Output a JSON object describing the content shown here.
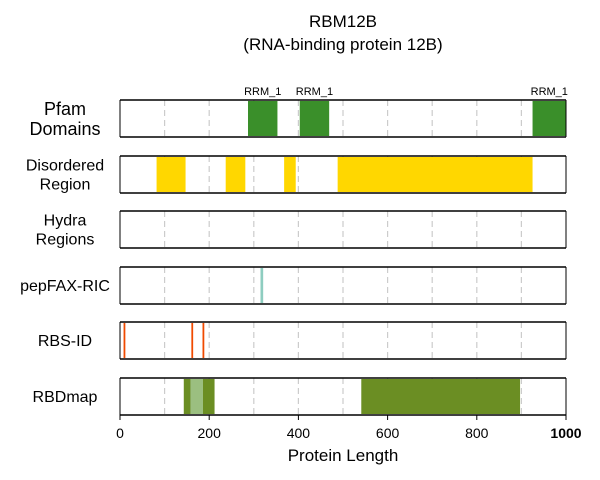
{
  "chart_data": {
    "type": "bar",
    "title": "RBM12B",
    "subtitle": "(RNA-binding protein 12B)",
    "xlabel": "Protein Length",
    "xlim": [
      0,
      1000
    ],
    "protein_length": 1000,
    "x_ticks": [
      0,
      200,
      400,
      600,
      800,
      1000
    ],
    "x_tick_labels": [
      "0",
      "200",
      "400",
      "600",
      "800",
      "1000"
    ],
    "grid": true,
    "tracks": [
      {
        "label_lines": [
          "Pfam",
          "Domains"
        ],
        "regions": [
          {
            "name": "RRM_1",
            "start": 287,
            "end": 353,
            "color": "#3a8f2a"
          },
          {
            "name": "RRM_1",
            "start": 403,
            "end": 469,
            "color": "#3a8f2a"
          },
          {
            "name": "RRM_1",
            "start": 925,
            "end": 1000,
            "color": "#3a8f2a"
          }
        ]
      },
      {
        "label_lines": [
          "Disordered",
          "Region"
        ],
        "regions": [
          {
            "start": 82,
            "end": 147,
            "color": "#ffd700"
          },
          {
            "start": 237,
            "end": 281,
            "color": "#ffd700"
          },
          {
            "start": 368,
            "end": 394,
            "color": "#ffd700"
          },
          {
            "start": 488,
            "end": 925,
            "color": "#ffd700"
          }
        ]
      },
      {
        "label_lines": [
          "Hydra",
          "Regions"
        ],
        "regions": []
      },
      {
        "label_lines": [
          "pepFAX-RIC"
        ],
        "regions": [
          {
            "start": 315,
            "end": 321,
            "color": "#8ecdc0"
          }
        ]
      },
      {
        "label_lines": [
          "RBS-ID"
        ],
        "regions": [
          {
            "start": 8,
            "end": 12,
            "color": "#f04a00"
          },
          {
            "start": 160,
            "end": 164,
            "color": "#f04a00"
          },
          {
            "start": 185,
            "end": 189,
            "color": "#f04a00"
          }
        ]
      },
      {
        "label_lines": [
          "RBDmap"
        ],
        "regions": [
          {
            "start": 143,
            "end": 158,
            "color": "#6b8e23"
          },
          {
            "start": 158,
            "end": 186,
            "color": "#9bbf80"
          },
          {
            "start": 186,
            "end": 212,
            "color": "#6b8e23"
          },
          {
            "start": 541,
            "end": 897,
            "color": "#6b8e23"
          }
        ]
      }
    ]
  }
}
